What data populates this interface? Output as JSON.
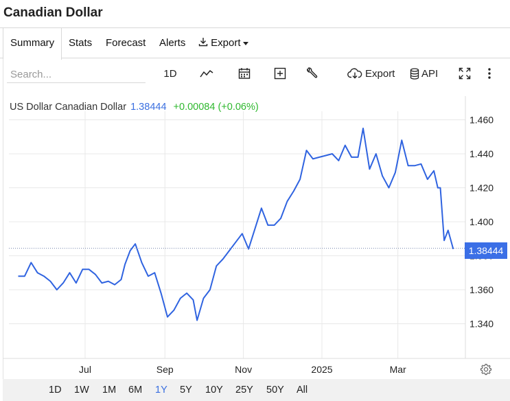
{
  "page_title": "Canadian Dollar",
  "tabs": [
    {
      "label": "Summary",
      "active": true
    },
    {
      "label": "Stats",
      "active": false
    },
    {
      "label": "Forecast",
      "active": false
    },
    {
      "label": "Alerts",
      "active": false
    },
    {
      "label": "Export",
      "active": false,
      "has_dropdown": true
    }
  ],
  "toolbar": {
    "search_placeholder": "Search...",
    "interval_label": "1D",
    "export_label": "Export",
    "api_label": "API",
    "icons": [
      "line-chart-icon",
      "calendar-icon",
      "plus-square-icon",
      "wrench-icon",
      "cloud-download-icon",
      "database-icon",
      "fullscreen-icon",
      "more-vertical-icon"
    ]
  },
  "quote": {
    "name": "US Dollar Canadian Dollar",
    "price": "1.38444",
    "change": "+0.00084 (+0.06%)"
  },
  "last_price_label": "1.38444",
  "colors": {
    "line": "#2f63e0",
    "price_text": "#3a6fe0",
    "change_positive": "#2eb82e",
    "price_tag_bg": "#3b6fe6",
    "grid": "#e8e8e8",
    "range_active": "#3a6fe0"
  },
  "ranges": [
    {
      "label": "1D",
      "active": false
    },
    {
      "label": "1W",
      "active": false
    },
    {
      "label": "1M",
      "active": false
    },
    {
      "label": "6M",
      "active": false
    },
    {
      "label": "1Y",
      "active": true
    },
    {
      "label": "5Y",
      "active": false
    },
    {
      "label": "10Y",
      "active": false
    },
    {
      "label": "25Y",
      "active": false
    },
    {
      "label": "50Y",
      "active": false
    },
    {
      "label": "All",
      "active": false
    }
  ],
  "chart_data": {
    "type": "line",
    "title": "",
    "xlabel": "",
    "ylabel": "",
    "ylim": [
      1.329,
      1.466
    ],
    "y_ticks": [
      "1.460",
      "1.440",
      "1.420",
      "1.400",
      "1.380",
      "1.360",
      "1.340"
    ],
    "x_tick_labels": [
      "Jul",
      "Sep",
      "Nov",
      "2025",
      "Mar"
    ],
    "grid": true,
    "series": [
      {
        "name": "US Dollar Canadian Dollar",
        "x": [
          "2024-05-10",
          "2024-05-15",
          "2024-05-20",
          "2024-05-25",
          "2024-05-30",
          "2024-06-04",
          "2024-06-09",
          "2024-06-14",
          "2024-06-19",
          "2024-06-24",
          "2024-06-29",
          "2024-07-04",
          "2024-07-09",
          "2024-07-14",
          "2024-07-19",
          "2024-07-24",
          "2024-07-29",
          "2024-08-01",
          "2024-08-05",
          "2024-08-09",
          "2024-08-14",
          "2024-08-19",
          "2024-08-24",
          "2024-08-29",
          "2024-09-03",
          "2024-09-08",
          "2024-09-13",
          "2024-09-18",
          "2024-09-23",
          "2024-09-26",
          "2024-10-01",
          "2024-10-06",
          "2024-10-11",
          "2024-10-16",
          "2024-10-21",
          "2024-10-26",
          "2024-10-31",
          "2024-11-05",
          "2024-11-10",
          "2024-11-15",
          "2024-11-20",
          "2024-11-25",
          "2024-11-30",
          "2024-12-05",
          "2024-12-10",
          "2024-12-15",
          "2024-12-20",
          "2024-12-25",
          "2024-12-30",
          "2025-01-04",
          "2025-01-09",
          "2025-01-14",
          "2025-01-19",
          "2025-01-24",
          "2025-01-29",
          "2025-02-02",
          "2025-02-07",
          "2025-02-12",
          "2025-02-17",
          "2025-02-22",
          "2025-02-27",
          "2025-03-04",
          "2025-03-09",
          "2025-03-14",
          "2025-03-19",
          "2025-03-24",
          "2025-03-29",
          "2025-04-01",
          "2025-04-03",
          "2025-04-06",
          "2025-04-09",
          "2025-04-13"
        ],
        "values": [
          1.368,
          1.368,
          1.376,
          1.37,
          1.368,
          1.365,
          1.36,
          1.364,
          1.37,
          1.364,
          1.372,
          1.372,
          1.369,
          1.364,
          1.365,
          1.363,
          1.366,
          1.375,
          1.383,
          1.387,
          1.376,
          1.368,
          1.37,
          1.358,
          1.344,
          1.348,
          1.355,
          1.358,
          1.354,
          1.342,
          1.355,
          1.36,
          1.374,
          1.378,
          1.383,
          1.388,
          1.393,
          1.384,
          1.396,
          1.408,
          1.398,
          1.398,
          1.402,
          1.412,
          1.418,
          1.425,
          1.442,
          1.437,
          1.438,
          1.439,
          1.44,
          1.436,
          1.445,
          1.438,
          1.438,
          1.455,
          1.431,
          1.44,
          1.427,
          1.42,
          1.429,
          1.448,
          1.433,
          1.433,
          1.434,
          1.425,
          1.43,
          1.42,
          1.42,
          1.389,
          1.395,
          1.384
        ]
      }
    ]
  }
}
